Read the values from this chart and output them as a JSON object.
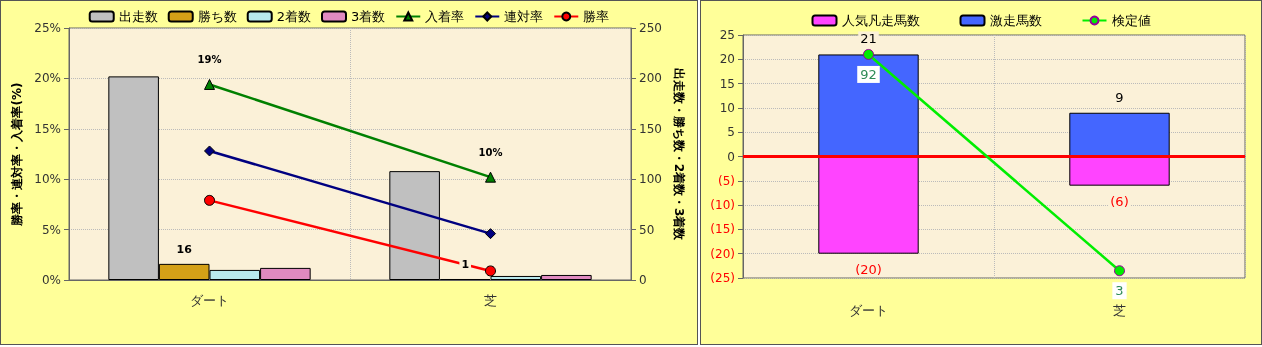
{
  "chart_data": [
    {
      "type": "bar",
      "categories": [
        "ダート",
        "芝"
      ],
      "ylabel": "勝率・連対率・入着率(%)",
      "y2label": "出走数・勝ち数・2着数・3着数",
      "ylim": [
        0,
        25
      ],
      "yticks": [
        {
          "value": 0,
          "label": "0%"
        },
        {
          "value": 5,
          "label": "5%"
        },
        {
          "value": 10,
          "label": "10%"
        },
        {
          "value": 15,
          "label": "15%"
        },
        {
          "value": 20,
          "label": "20%"
        },
        {
          "value": 25,
          "label": "25%"
        }
      ],
      "y2lim": [
        0,
        250
      ],
      "y2ticks": [
        0,
        50,
        100,
        150,
        200,
        250
      ],
      "grid": true,
      "legend": "top",
      "series": [
        {
          "name": "出走数",
          "color": "#c0c0c0",
          "axis": "y2",
          "values": [
            202,
            108
          ]
        },
        {
          "name": "勝ち数",
          "color": "#d4a017",
          "axis": "y2",
          "values": [
            16,
            1
          ],
          "value_labels": [
            "16",
            "1"
          ]
        },
        {
          "name": "2着数",
          "color": "#b8e8ec",
          "axis": "y2",
          "values": [
            10,
            4
          ]
        },
        {
          "name": "3着数",
          "color": "#e08ac0",
          "axis": "y2",
          "values": [
            12,
            5
          ]
        },
        {
          "name": "入着率",
          "type": "line",
          "color": "#008000",
          "marker": "triangle",
          "values": [
            19.4,
            10.2
          ],
          "value_labels": [
            "19%",
            "10%"
          ]
        },
        {
          "name": "連対率",
          "type": "line",
          "color": "#000080",
          "marker": "diamond",
          "values": [
            12.8,
            4.6
          ]
        },
        {
          "name": "勝率",
          "type": "line",
          "color": "#ff0000",
          "marker": "circle",
          "values": [
            7.9,
            0.9
          ]
        }
      ]
    },
    {
      "type": "bar",
      "stacked": true,
      "categories": [
        "ダート",
        "芝"
      ],
      "ylim": [
        -25,
        25
      ],
      "yticks": [
        {
          "value": -25,
          "label": "(25)"
        },
        {
          "value": -20,
          "label": "(20)"
        },
        {
          "value": -15,
          "label": "(15)"
        },
        {
          "value": -10,
          "label": "(10)"
        },
        {
          "value": -5,
          "label": "(5)"
        },
        0,
        5,
        10,
        15,
        20,
        25
      ],
      "y2lim": [
        0,
        100
      ],
      "grid": true,
      "legend": "top",
      "ref_lines": [
        {
          "axis": "y",
          "value": 0,
          "color": "#ff0000"
        }
      ],
      "series": [
        {
          "name": "人気凡走馬数",
          "color": "#ff44ff",
          "values": [
            -20,
            -6
          ],
          "value_labels": [
            "(20)",
            "(6)"
          ]
        },
        {
          "name": "激走馬数",
          "color": "#4466ff",
          "values": [
            21,
            9
          ],
          "value_labels": [
            "21",
            "9"
          ]
        },
        {
          "name": "検定値",
          "type": "line",
          "axis": "y2",
          "color": "#00ee00",
          "marker": "circle",
          "values": [
            92,
            3
          ],
          "data_labels": true
        }
      ]
    }
  ]
}
